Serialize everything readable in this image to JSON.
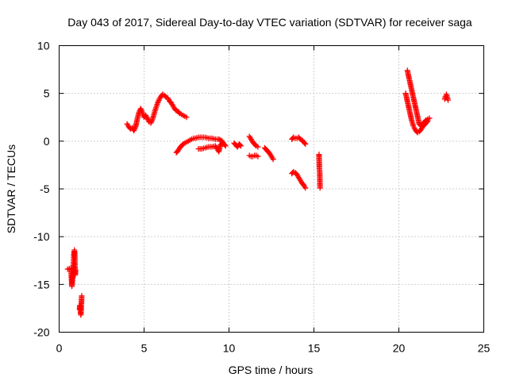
{
  "chart_data": {
    "type": "scatter",
    "title": "Day 043 of 2017, Sidereal Day-to-day VTEC variation (SDTVAR) for receiver saga",
    "xlabel": "GPS time / hours",
    "ylabel": "SDTVAR / TECUs",
    "xlim": [
      0,
      25
    ],
    "ylim": [
      -20,
      10
    ],
    "xticks": [
      0,
      5,
      10,
      15,
      20,
      25
    ],
    "yticks": [
      -20,
      -15,
      -10,
      -5,
      0,
      5,
      10
    ],
    "grid": true,
    "marker": "+",
    "color": "#ff0000",
    "series": [
      {
        "name": "SDTVAR",
        "segments": [
          [
            [
              0.5,
              -13.4
            ],
            [
              0.7,
              -13.3
            ],
            [
              0.75,
              -15.2
            ],
            [
              0.78,
              -14.6
            ],
            [
              0.8,
              -14.2
            ],
            [
              0.82,
              -13.8
            ],
            [
              0.83,
              -13.0
            ],
            [
              0.85,
              -12.5
            ],
            [
              0.86,
              -12.0
            ],
            [
              0.88,
              -11.6
            ],
            [
              0.9,
              -11.4
            ],
            [
              0.92,
              -11.8
            ],
            [
              0.93,
              -13.2
            ],
            [
              0.95,
              -14.0
            ],
            [
              0.97,
              -13.5
            ]
          ],
          [
            [
              1.2,
              -17.6
            ],
            [
              1.22,
              -17.2
            ],
            [
              1.25,
              -17.8
            ],
            [
              1.28,
              -18.2
            ],
            [
              1.3,
              -17.4
            ],
            [
              1.33,
              -16.2
            ]
          ],
          [
            [
              4.0,
              1.8
            ],
            [
              4.1,
              1.5
            ],
            [
              4.2,
              1.3
            ],
            [
              4.3,
              1.4
            ],
            [
              4.4,
              1.1
            ],
            [
              4.5,
              1.5
            ],
            [
              4.6,
              2.3
            ],
            [
              4.7,
              3.0
            ],
            [
              4.8,
              3.4
            ],
            [
              4.9,
              3.0
            ],
            [
              5.0,
              2.5
            ],
            [
              5.1,
              2.7
            ],
            [
              5.2,
              2.4
            ],
            [
              5.3,
              2.0
            ],
            [
              5.4,
              1.9
            ],
            [
              5.5,
              2.3
            ],
            [
              5.6,
              2.9
            ],
            [
              5.7,
              3.5
            ],
            [
              5.8,
              4.0
            ],
            [
              5.9,
              4.4
            ],
            [
              6.0,
              4.7
            ],
            [
              6.1,
              4.9
            ],
            [
              6.2,
              4.8
            ],
            [
              6.3,
              4.6
            ],
            [
              6.4,
              4.5
            ],
            [
              6.5,
              4.2
            ],
            [
              6.6,
              4.0
            ],
            [
              6.7,
              3.7
            ],
            [
              6.8,
              3.4
            ],
            [
              6.9,
              3.2
            ],
            [
              7.0,
              3.1
            ],
            [
              7.1,
              2.9
            ],
            [
              7.2,
              2.8
            ],
            [
              7.3,
              2.7
            ],
            [
              7.4,
              2.6
            ],
            [
              7.5,
              2.5
            ]
          ],
          [
            [
              6.9,
              -1.2
            ],
            [
              7.0,
              -1.0
            ],
            [
              7.1,
              -0.7
            ],
            [
              7.2,
              -0.5
            ],
            [
              7.3,
              -0.3
            ],
            [
              7.4,
              -0.2
            ],
            [
              7.5,
              -0.1
            ],
            [
              7.6,
              0.0
            ],
            [
              7.7,
              0.1
            ],
            [
              7.8,
              0.2
            ],
            [
              7.9,
              0.3
            ],
            [
              8.0,
              0.3
            ],
            [
              8.2,
              0.4
            ],
            [
              8.4,
              0.4
            ],
            [
              8.6,
              0.4
            ],
            [
              8.8,
              0.3
            ],
            [
              9.0,
              0.3
            ],
            [
              9.2,
              0.2
            ],
            [
              9.4,
              0.2
            ],
            [
              9.6,
              0.0
            ],
            [
              9.7,
              -0.3
            ],
            [
              9.8,
              -0.5
            ]
          ],
          [
            [
              8.2,
              -0.8
            ],
            [
              8.4,
              -0.8
            ],
            [
              8.6,
              -0.7
            ],
            [
              8.8,
              -0.6
            ],
            [
              9.0,
              -0.6
            ],
            [
              9.2,
              -0.5
            ],
            [
              9.3,
              -0.8
            ],
            [
              9.4,
              -1.1
            ],
            [
              9.5,
              -0.4
            ],
            [
              9.6,
              -0.2
            ]
          ],
          [
            [
              10.3,
              -0.2
            ],
            [
              10.4,
              -0.4
            ],
            [
              10.5,
              -0.6
            ],
            [
              10.6,
              -0.3
            ],
            [
              10.7,
              -0.5
            ]
          ],
          [
            [
              11.2,
              0.5
            ],
            [
              11.3,
              0.2
            ],
            [
              11.4,
              -0.1
            ],
            [
              11.5,
              -0.3
            ],
            [
              11.6,
              -0.5
            ],
            [
              11.7,
              -0.6
            ]
          ],
          [
            [
              11.2,
              -1.5
            ],
            [
              11.3,
              -1.6
            ],
            [
              11.4,
              -1.6
            ],
            [
              11.5,
              -1.5
            ],
            [
              11.6,
              -1.5
            ],
            [
              11.7,
              -1.6
            ]
          ],
          [
            [
              12.1,
              -0.7
            ],
            [
              12.2,
              -0.9
            ],
            [
              12.3,
              -1.1
            ],
            [
              12.4,
              -1.3
            ],
            [
              12.5,
              -1.6
            ],
            [
              12.6,
              -1.9
            ]
          ],
          [
            [
              13.7,
              0.2
            ],
            [
              13.8,
              0.4
            ],
            [
              13.9,
              0.3
            ],
            [
              14.0,
              0.3
            ],
            [
              14.1,
              0.4
            ],
            [
              14.2,
              0.2
            ],
            [
              14.3,
              0.1
            ],
            [
              14.4,
              -0.1
            ],
            [
              14.5,
              -0.3
            ]
          ],
          [
            [
              13.7,
              -3.4
            ],
            [
              13.8,
              -3.2
            ],
            [
              13.9,
              -3.3
            ],
            [
              14.0,
              -3.5
            ],
            [
              14.1,
              -3.8
            ],
            [
              14.2,
              -4.1
            ],
            [
              14.3,
              -4.4
            ],
            [
              14.4,
              -4.6
            ],
            [
              14.5,
              -4.9
            ]
          ],
          [
            [
              15.3,
              -1.4
            ],
            [
              15.32,
              -2.9
            ],
            [
              15.34,
              -3.2
            ],
            [
              15.36,
              -4.9
            ]
          ],
          [
            [
              20.5,
              7.4
            ],
            [
              20.55,
              7.0
            ],
            [
              20.6,
              6.6
            ],
            [
              20.65,
              6.2
            ],
            [
              20.7,
              5.8
            ],
            [
              20.75,
              5.4
            ],
            [
              20.8,
              5.0
            ],
            [
              20.85,
              4.6
            ],
            [
              20.9,
              4.2
            ],
            [
              20.95,
              3.8
            ],
            [
              21.0,
              3.4
            ],
            [
              21.05,
              3.0
            ],
            [
              21.1,
              2.6
            ],
            [
              21.15,
              2.2
            ],
            [
              21.2,
              1.8
            ],
            [
              21.3,
              1.6
            ],
            [
              21.4,
              1.8
            ],
            [
              21.5,
              2.0
            ],
            [
              21.6,
              2.2
            ],
            [
              21.7,
              2.3
            ],
            [
              21.8,
              2.4
            ]
          ],
          [
            [
              20.4,
              5.0
            ],
            [
              20.45,
              4.6
            ],
            [
              20.5,
              4.2
            ],
            [
              20.55,
              3.8
            ],
            [
              20.6,
              3.4
            ],
            [
              20.65,
              3.0
            ],
            [
              20.7,
              2.6
            ],
            [
              20.75,
              2.2
            ],
            [
              20.8,
              1.9
            ],
            [
              20.85,
              1.6
            ],
            [
              20.9,
              1.4
            ],
            [
              21.0,
              1.1
            ],
            [
              21.1,
              0.9
            ],
            [
              21.2,
              1.0
            ],
            [
              21.3,
              1.2
            ],
            [
              21.4,
              1.5
            ],
            [
              21.5,
              1.7
            ],
            [
              21.6,
              1.9
            ],
            [
              21.7,
              2.1
            ]
          ],
          [
            [
              22.7,
              4.4
            ],
            [
              22.75,
              4.7
            ],
            [
              22.8,
              4.9
            ],
            [
              22.85,
              4.6
            ],
            [
              22.9,
              4.3
            ]
          ]
        ]
      }
    ]
  }
}
